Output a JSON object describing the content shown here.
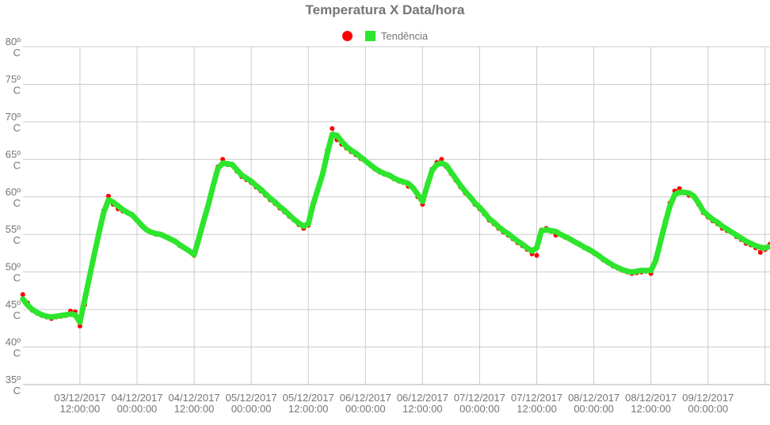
{
  "chart_data": {
    "type": "line",
    "title": "Temperatura X Data/hora",
    "legend": [
      {
        "label": "",
        "marker": "circle",
        "color": "#ff0000"
      },
      {
        "label": "Tendência",
        "marker": "square",
        "color": "#2de52d"
      }
    ],
    "grid": {
      "color": "#cccccc",
      "axis_line_color": "#b0b0b0",
      "background": "#ffffff"
    },
    "y_axis": {
      "range": [
        35,
        80
      ],
      "tick_values": [
        80,
        75,
        70,
        65,
        60,
        55,
        50,
        45,
        40,
        35
      ],
      "tick_labels": [
        [
          "80º",
          "C"
        ],
        [
          "75º",
          "C"
        ],
        [
          "70º",
          "C"
        ],
        [
          "65º",
          "C"
        ],
        [
          "60º",
          "C"
        ],
        [
          "55º",
          "C"
        ],
        [
          "50º",
          "C"
        ],
        [
          "45º",
          "C"
        ],
        [
          "40º",
          "C"
        ],
        [
          "35º",
          "C"
        ]
      ]
    },
    "x_axis": {
      "points_start": "03/12/2017 00:00:00",
      "points_interval_hours": 1,
      "gridline_count": 13,
      "tick_labels": [
        [
          "03/12/2017",
          "12:00:00"
        ],
        [
          "04/12/2017",
          "00:00:00"
        ],
        [
          "04/12/2017",
          "12:00:00"
        ],
        [
          "05/12/2017",
          "00:00:00"
        ],
        [
          "05/12/2017",
          "12:00:00"
        ],
        [
          "06/12/2017",
          "00:00:00"
        ],
        [
          "06/12/2017",
          "12:00:00"
        ],
        [
          "07/12/2017",
          "00:00:00"
        ],
        [
          "07/12/2017",
          "12:00:00"
        ],
        [
          "08/12/2017",
          "00:00:00"
        ],
        [
          "08/12/2017",
          "12:00:00"
        ],
        [
          "09/12/2017",
          "00:00:00"
        ]
      ]
    },
    "series": [
      {
        "name": "",
        "style": "points-with-dotted-line",
        "color": "#ff0000",
        "values": [
          47.0,
          45.9,
          44.9,
          44.5,
          44.2,
          44.0,
          43.8,
          44.0,
          44.1,
          44.2,
          44.8,
          44.7,
          42.8,
          45.6,
          49.5,
          52.6,
          55.5,
          58.2,
          60.1,
          59.0,
          58.4,
          58.1,
          57.9,
          57.5,
          56.9,
          56.1,
          55.7,
          55.3,
          55.0,
          55.0,
          54.7,
          54.4,
          54.0,
          53.5,
          53.2,
          52.8,
          52.2,
          54.5,
          56.8,
          59.0,
          61.5,
          64.0,
          65.0,
          64.3,
          64.2,
          63.4,
          62.7,
          62.3,
          61.9,
          61.3,
          60.8,
          60.2,
          59.6,
          59.1,
          58.5,
          58.0,
          57.4,
          56.9,
          56.3,
          55.8,
          56.2,
          59.1,
          61.0,
          63.0,
          66.2,
          69.1,
          67.6,
          67.0,
          66.5,
          66.0,
          65.6,
          65.1,
          64.8,
          64.2,
          63.7,
          63.3,
          63.0,
          62.8,
          62.4,
          62.1,
          61.9,
          61.4,
          61.1,
          60.0,
          59.0,
          61.8,
          63.7,
          64.6,
          65.0,
          64.0,
          63.1,
          62.2,
          61.3,
          60.5,
          59.9,
          59.0,
          58.4,
          57.7,
          56.9,
          56.4,
          55.8,
          55.3,
          54.9,
          54.4,
          53.9,
          53.5,
          53.0,
          52.4,
          52.2,
          55.6,
          55.8,
          55.4,
          54.9,
          55.0,
          54.6,
          54.3,
          54.0,
          53.6,
          53.2,
          52.9,
          52.5,
          52.1,
          51.6,
          51.2,
          50.8,
          50.5,
          50.2,
          50.0,
          49.8,
          49.9,
          50.0,
          50.1,
          49.8,
          51.8,
          54.3,
          56.8,
          59.2,
          60.8,
          61.1,
          60.6,
          60.2,
          60.0,
          59.0,
          57.9,
          57.3,
          56.8,
          56.4,
          55.8,
          55.5,
          55.3,
          54.7,
          54.3,
          53.8,
          53.6,
          53.2,
          52.6,
          53.0,
          53.7
        ]
      },
      {
        "name": "Tendência",
        "style": "thick-line",
        "color": "#2de52d",
        "values": [
          46.4,
          45.6,
          45.0,
          44.6,
          44.3,
          44.1,
          44.0,
          44.1,
          44.2,
          44.3,
          44.4,
          44.3,
          43.3,
          46.3,
          49.3,
          52.3,
          55.2,
          57.9,
          59.6,
          59.3,
          58.8,
          58.3,
          57.9,
          57.6,
          56.9,
          56.2,
          55.6,
          55.3,
          55.1,
          55.0,
          54.7,
          54.4,
          54.1,
          53.6,
          53.2,
          52.8,
          52.3,
          54.5,
          56.8,
          59.0,
          61.5,
          63.8,
          64.5,
          64.4,
          64.3,
          63.6,
          62.9,
          62.5,
          62.1,
          61.5,
          61.0,
          60.4,
          59.8,
          59.3,
          58.7,
          58.2,
          57.6,
          57.0,
          56.5,
          56.1,
          56.4,
          59.0,
          61.0,
          63.0,
          65.8,
          68.3,
          68.2,
          67.4,
          66.7,
          66.2,
          65.8,
          65.3,
          64.8,
          64.3,
          63.8,
          63.4,
          63.1,
          62.9,
          62.5,
          62.2,
          62.0,
          61.8,
          61.2,
          60.3,
          59.4,
          61.5,
          63.5,
          64.3,
          64.5,
          64.2,
          63.3,
          62.4,
          61.5,
          60.7,
          60.0,
          59.2,
          58.6,
          57.9,
          57.1,
          56.6,
          56.0,
          55.5,
          55.1,
          54.6,
          54.1,
          53.7,
          53.2,
          52.8,
          53.2,
          55.5,
          55.6,
          55.5,
          55.4,
          55.0,
          54.7,
          54.4,
          54.0,
          53.7,
          53.3,
          53.0,
          52.6,
          52.2,
          51.7,
          51.3,
          50.9,
          50.6,
          50.3,
          50.1,
          50.0,
          50.1,
          50.2,
          50.2,
          50.2,
          51.5,
          54.0,
          56.5,
          58.8,
          60.3,
          60.6,
          60.6,
          60.5,
          60.1,
          59.2,
          58.1,
          57.5,
          57.0,
          56.6,
          56.1,
          55.7,
          55.3,
          54.9,
          54.5,
          54.1,
          53.8,
          53.5,
          53.3,
          53.2,
          53.4
        ]
      }
    ]
  }
}
